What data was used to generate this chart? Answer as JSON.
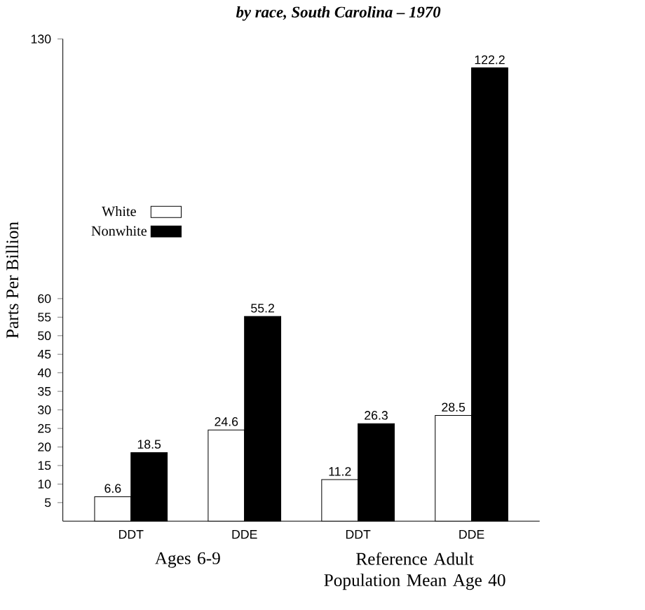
{
  "chart_data": {
    "type": "bar",
    "title": "by race, South Carolina – 1970",
    "ylabel": "Parts Per Billion",
    "categories": [
      "DDT",
      "DDE",
      "DDT",
      "DDE"
    ],
    "series": [
      {
        "name": "White",
        "color": "#ffffff",
        "values": [
          6.6,
          24.6,
          11.2,
          28.5
        ]
      },
      {
        "name": "Nonwhite",
        "color": "#000000",
        "values": [
          18.5,
          55.2,
          26.3,
          122.2
        ]
      }
    ],
    "ylim": [
      0,
      130
    ],
    "yticks": [
      5,
      10,
      15,
      20,
      25,
      30,
      35,
      40,
      45,
      50,
      55,
      60,
      130
    ],
    "data_labels": true,
    "legend": "left",
    "grid": false,
    "annotations": [
      "Ages 6-9",
      "Reference Adult Population Mean Age 40"
    ]
  }
}
